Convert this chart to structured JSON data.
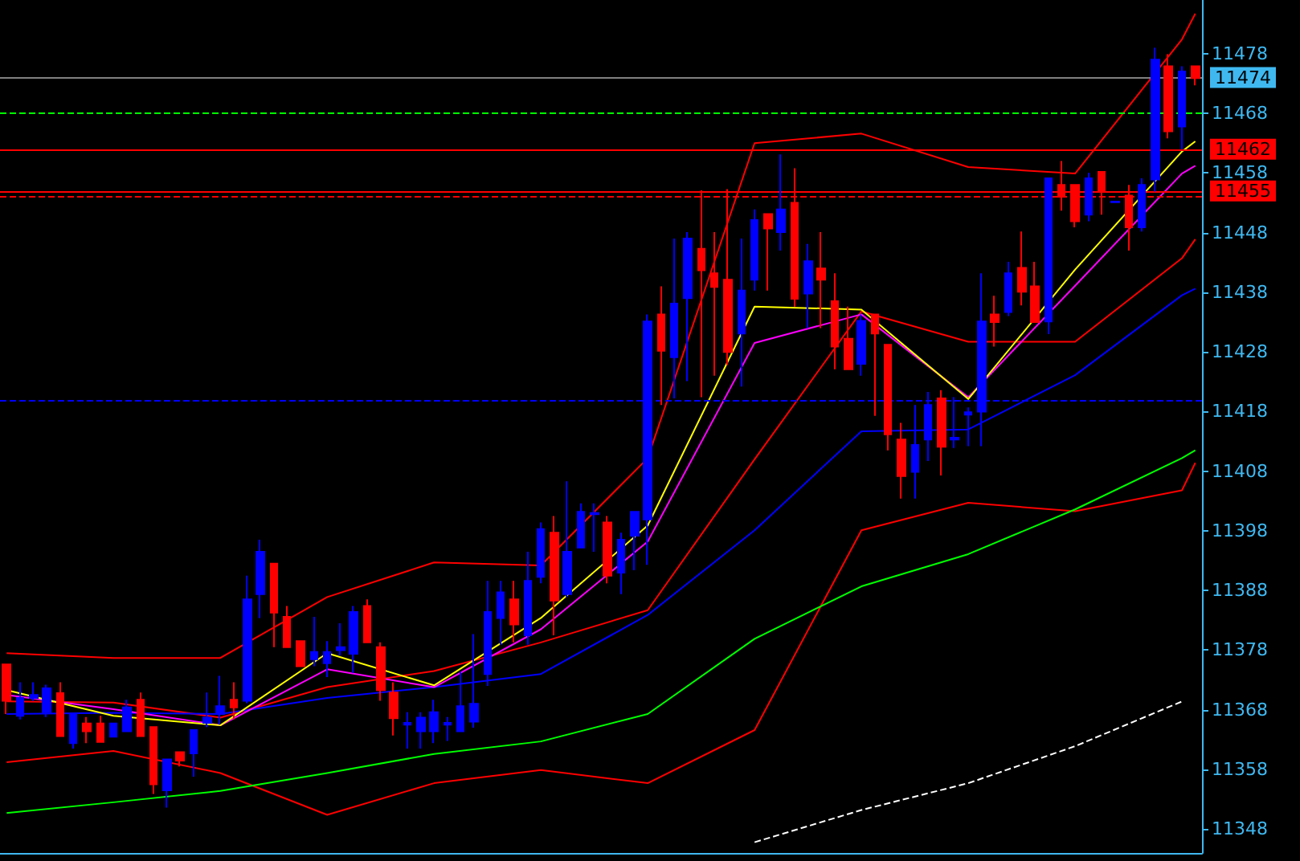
{
  "chart_data": {
    "type": "candlestick",
    "categories": [
      null,
      null,
      null,
      null,
      null,
      null,
      null,
      null,
      null,
      null,
      null,
      null,
      null,
      null,
      null,
      null,
      null,
      null,
      null,
      null,
      null,
      null,
      null,
      null,
      null,
      null,
      null,
      null,
      null,
      null,
      null,
      null,
      null,
      null,
      null,
      null,
      null,
      null,
      null,
      null,
      null,
      null,
      null,
      null,
      null,
      null,
      null,
      null,
      null,
      null,
      null,
      null,
      null,
      null,
      null,
      null,
      null,
      null,
      null,
      null,
      null,
      null,
      null,
      null,
      null,
      null,
      null,
      null,
      null,
      null,
      null,
      null,
      null,
      null,
      null,
      null,
      null,
      null,
      null,
      null,
      null,
      null,
      null,
      null,
      null,
      null,
      null,
      null,
      null,
      null
    ],
    "series": [
      {
        "type": "line",
        "color": "#ff0000",
        "values": [
          11377.5,
          null,
          null,
          null,
          null,
          null,
          null,
          null,
          11376.7,
          null,
          null,
          null,
          null,
          null,
          null,
          null,
          11376.7,
          null,
          null,
          null,
          null,
          null,
          null,
          null,
          11386.9,
          null,
          null,
          null,
          null,
          null,
          null,
          null,
          11392.7,
          null,
          null,
          null,
          null,
          null,
          null,
          null,
          11392.2,
          null,
          null,
          null,
          null,
          null,
          null,
          null,
          11410.2,
          null,
          null,
          null,
          null,
          null,
          null,
          null,
          11463.0,
          null,
          null,
          null,
          null,
          null,
          null,
          null,
          11464.6,
          null,
          null,
          null,
          null,
          null,
          null,
          null,
          11459.0,
          null,
          null,
          null,
          null,
          null,
          null,
          null,
          11457.9,
          null,
          null,
          null,
          null,
          null,
          null,
          null,
          11480.4,
          11484.7
        ]
      },
      {
        "type": "line",
        "color": "#ff0000",
        "values": [
          11369.4,
          null,
          null,
          null,
          null,
          null,
          null,
          null,
          11369.2,
          null,
          null,
          null,
          null,
          null,
          null,
          null,
          11366.7,
          null,
          null,
          null,
          null,
          null,
          null,
          null,
          11371.8,
          null,
          null,
          null,
          null,
          null,
          null,
          null,
          11374.5,
          null,
          null,
          null,
          null,
          null,
          null,
          null,
          11379.3,
          null,
          null,
          null,
          null,
          null,
          null,
          null,
          11384.7,
          null,
          null,
          null,
          null,
          null,
          null,
          null,
          11410,
          null,
          null,
          null,
          null,
          null,
          null,
          null,
          11434.8,
          null,
          null,
          null,
          null,
          null,
          null,
          null,
          11429.7,
          null,
          null,
          null,
          null,
          null,
          null,
          null,
          11429.7,
          null,
          null,
          null,
          null,
          null,
          null,
          null,
          11443.7,
          11446.9
        ]
      },
      {
        "type": "line",
        "color": "#ff0000",
        "values": [
          11359.2,
          null,
          null,
          null,
          null,
          null,
          null,
          null,
          11361.1,
          null,
          null,
          null,
          null,
          null,
          null,
          null,
          11357.4,
          null,
          null,
          null,
          null,
          null,
          null,
          null,
          11350.4,
          null,
          null,
          null,
          null,
          null,
          null,
          null,
          11355.7,
          null,
          null,
          null,
          null,
          null,
          null,
          null,
          11357.9,
          null,
          null,
          null,
          null,
          null,
          null,
          null,
          11355.7,
          null,
          null,
          null,
          null,
          null,
          null,
          null,
          11364.6,
          null,
          null,
          null,
          null,
          null,
          null,
          null,
          11398.1,
          null,
          null,
          null,
          null,
          null,
          null,
          null,
          11402.7,
          null,
          null,
          null,
          null,
          null,
          null,
          null,
          11401.3,
          null,
          null,
          null,
          null,
          null,
          null,
          null,
          11404.8,
          11409.4
        ]
      },
      {
        "type": "line",
        "color": "#00ff00",
        "values": [
          11350.7,
          null,
          null,
          null,
          null,
          null,
          null,
          null,
          11352.5,
          null,
          null,
          null,
          null,
          null,
          null,
          null,
          11354.4,
          null,
          null,
          null,
          null,
          null,
          null,
          null,
          11357.4,
          null,
          null,
          null,
          null,
          null,
          null,
          null,
          11360.6,
          null,
          null,
          null,
          null,
          null,
          null,
          null,
          11362.7,
          null,
          null,
          null,
          null,
          null,
          null,
          null,
          11367.3,
          null,
          null,
          null,
          null,
          null,
          null,
          null,
          11379.9,
          null,
          null,
          null,
          null,
          null,
          null,
          null,
          11388.7,
          null,
          null,
          null,
          null,
          null,
          null,
          null,
          11394.1,
          null,
          null,
          null,
          null,
          null,
          null,
          null,
          11401.6,
          null,
          null,
          null,
          null,
          null,
          null,
          null,
          11410.2,
          11411.5
        ]
      },
      {
        "type": "line",
        "color": "#0000ff",
        "values": [
          11367.3,
          null,
          null,
          null,
          null,
          null,
          null,
          null,
          11367.5,
          null,
          null,
          null,
          null,
          null,
          null,
          null,
          11367.3,
          null,
          null,
          null,
          null,
          null,
          null,
          null,
          11370.0,
          null,
          null,
          null,
          null,
          null,
          null,
          null,
          11371.8,
          null,
          null,
          null,
          null,
          null,
          null,
          null,
          11374.0,
          null,
          null,
          null,
          null,
          null,
          null,
          null,
          11383.9,
          null,
          null,
          null,
          null,
          null,
          null,
          null,
          11398.1,
          null,
          null,
          null,
          null,
          null,
          null,
          null,
          11414.7,
          null,
          null,
          null,
          null,
          null,
          null,
          null,
          11415.0,
          null,
          null,
          null,
          null,
          null,
          null,
          null,
          11424.1,
          null,
          null,
          null,
          null,
          null,
          null,
          null,
          11437.5,
          11438.6
        ]
      },
      {
        "type": "line",
        "color": "#ff00ff",
        "values": [
          11370.5,
          null,
          null,
          null,
          null,
          null,
          null,
          null,
          11368.1,
          null,
          null,
          null,
          null,
          null,
          null,
          null,
          11365.4,
          null,
          null,
          null,
          null,
          null,
          null,
          null,
          11374.8,
          null,
          null,
          null,
          null,
          null,
          null,
          null,
          11371.8,
          null,
          null,
          null,
          null,
          null,
          null,
          null,
          11381.5,
          null,
          null,
          null,
          null,
          null,
          null,
          null,
          11396.2,
          null,
          null,
          null,
          null,
          null,
          null,
          null,
          11429.5,
          null,
          null,
          null,
          null,
          null,
          null,
          null,
          11434.3,
          null,
          null,
          null,
          null,
          null,
          null,
          null,
          11420.4,
          null,
          null,
          null,
          null,
          null,
          null,
          null,
          11439.1,
          null,
          null,
          null,
          null,
          null,
          null,
          null,
          11457.9,
          11459.2
        ]
      },
      {
        "type": "line",
        "color": "#ffff00",
        "values": [
          11371.3,
          null,
          null,
          null,
          null,
          null,
          null,
          null,
          11367.0,
          null,
          null,
          null,
          null,
          null,
          null,
          null,
          11365.4,
          null,
          null,
          null,
          null,
          null,
          null,
          null,
          11377.5,
          null,
          null,
          null,
          null,
          null,
          null,
          null,
          11372.1,
          null,
          null,
          null,
          null,
          null,
          null,
          null,
          11383.4,
          null,
          null,
          null,
          null,
          null,
          null,
          null,
          11398.9,
          null,
          null,
          null,
          null,
          null,
          null,
          null,
          11435.6,
          null,
          null,
          null,
          null,
          null,
          null,
          null,
          11435.1,
          null,
          null,
          null,
          null,
          null,
          null,
          null,
          11420.1,
          null,
          null,
          null,
          null,
          null,
          null,
          null,
          11441.8,
          null,
          null,
          null,
          null,
          null,
          null,
          null,
          11461.6,
          11463.3
        ]
      },
      {
        "type": "line",
        "color": "#ffffff",
        "line_style": "dashed",
        "values": [
          null,
          null,
          null,
          null,
          null,
          null,
          null,
          null,
          null,
          null,
          null,
          null,
          null,
          null,
          null,
          null,
          null,
          null,
          null,
          null,
          null,
          null,
          null,
          null,
          null,
          null,
          null,
          null,
          null,
          null,
          null,
          null,
          null,
          null,
          null,
          null,
          null,
          null,
          null,
          null,
          null,
          null,
          null,
          null,
          null,
          null,
          null,
          null,
          null,
          null,
          null,
          null,
          null,
          null,
          null,
          null,
          11345.8,
          null,
          null,
          null,
          null,
          null,
          null,
          null,
          11351.2,
          null,
          null,
          null,
          null,
          null,
          null,
          null,
          11355.7,
          null,
          null,
          null,
          null,
          null,
          null,
          null,
          11361.9,
          null,
          null,
          null,
          null,
          null,
          null,
          null,
          11369.4,
          null
        ]
      },
      {
        "colors": [
          "#ff0000",
          "#0000ff",
          "#0000ff",
          "#0000ff",
          "#ff0000",
          "#0000ff",
          "#ff0000",
          "#ff0000",
          "#0000ff",
          "#0000ff",
          "#ff0000",
          "#ff0000",
          "#0000ff",
          "#ff0000",
          "#0000ff",
          "#0000ff",
          "#0000ff",
          "#ff0000",
          "#0000ff",
          "#0000ff",
          "#ff0000",
          "#ff0000",
          "#ff0000",
          "#0000ff",
          "#0000ff",
          "#0000ff",
          "#0000ff",
          "#ff0000",
          "#ff0000",
          "#ff0000",
          "#0000ff",
          "#0000ff",
          "#0000ff",
          "#0000ff",
          "#0000ff",
          "#0000ff",
          "#0000ff",
          "#0000ff",
          "#ff0000",
          "#0000ff",
          "#0000ff",
          "#ff0000",
          "#0000ff",
          "#0000ff",
          "#0000ff",
          "#ff0000",
          "#0000ff",
          "#0000ff",
          "#0000ff",
          "#ff0000",
          "#0000ff",
          "#0000ff",
          "#ff0000",
          "#ff0000",
          "#ff0000",
          "#0000ff",
          "#0000ff",
          "#ff0000",
          "#0000ff",
          "#ff0000",
          "#0000ff",
          "#ff0000",
          "#ff0000",
          "#ff0000",
          "#0000ff",
          "#ff0000",
          "#ff0000",
          "#ff0000",
          "#0000ff",
          "#0000ff",
          "#ff0000",
          "#0000ff",
          "#0000ff",
          "#0000ff",
          "#ff0000",
          "#0000ff",
          "#ff0000",
          "#ff0000",
          "#0000ff",
          "#ff0000",
          "#ff0000",
          "#0000ff",
          "#ff0000",
          "#0000ff",
          "#ff0000",
          "#0000ff",
          "#0000ff",
          "#ff0000",
          "#0000ff",
          "#ff0000"
        ],
        "ohlc": [
          [
            11375.6,
            11375.6,
            11367.3,
            11369.5
          ],
          [
            11367.0,
            11372.6,
            11366.4,
            11370.0
          ],
          [
            11370.0,
            11372.6,
            11369.5,
            11370.5
          ],
          [
            11367.6,
            11372.2,
            11366.8,
            11371.6
          ],
          [
            11370.8,
            11372.6,
            11363.6,
            11363.6
          ],
          [
            11362.4,
            11367.3,
            11361.5,
            11367.3
          ],
          [
            11365.7,
            11366.8,
            11362.4,
            11364.4
          ],
          [
            11365.7,
            11367.0,
            11362.6,
            11362.6
          ],
          [
            11363.5,
            11365.7,
            11363.5,
            11365.7
          ],
          [
            11364.4,
            11369.7,
            11364.4,
            11368.4
          ],
          [
            11369.7,
            11370.9,
            11363.6,
            11363.6
          ],
          [
            11365.1,
            11365.1,
            11353.9,
            11355.5
          ],
          [
            11354.5,
            11359.7,
            11351.6,
            11359.7
          ],
          [
            11360.9,
            11360.9,
            11358.5,
            11359.5
          ],
          [
            11360.7,
            11364.6,
            11356.8,
            11364.6
          ],
          [
            11365.8,
            11370.9,
            11365.1,
            11366.7
          ],
          [
            11367.3,
            11373.7,
            11365.5,
            11368.6
          ],
          [
            11369.7,
            11372.6,
            11366.4,
            11368.4
          ],
          [
            11369.5,
            11390.5,
            11369.1,
            11386.5
          ],
          [
            11387.4,
            11396.5,
            11383.4,
            11394.5
          ],
          [
            11392.5,
            11392.5,
            11378.5,
            11384.3
          ],
          [
            11383.6,
            11385.4,
            11378.5,
            11378.5
          ],
          [
            11379.5,
            11379.5,
            11375.3,
            11375.3
          ],
          [
            11376.5,
            11383.6,
            11375.3,
            11377.7
          ],
          [
            11375.8,
            11379.5,
            11373.5,
            11377.7
          ],
          [
            11378.0,
            11382.5,
            11377.1,
            11378.5
          ],
          [
            11377.4,
            11385.4,
            11374.2,
            11384.4
          ],
          [
            11385.4,
            11386.5,
            11379.3,
            11379.3
          ],
          [
            11378.5,
            11379.3,
            11369.5,
            11371.3
          ],
          [
            11370.9,
            11372.6,
            11363.7,
            11366.6
          ],
          [
            11365.5,
            11367.6,
            11361.5,
            11365.8
          ],
          [
            11364.4,
            11367.6,
            11361.5,
            11366.7
          ],
          [
            11364.4,
            11369.7,
            11362.4,
            11367.6
          ],
          [
            11365.5,
            11366.8,
            11362.8,
            11365.8
          ],
          [
            11364.4,
            11374.4,
            11364.4,
            11368.6
          ],
          [
            11366.0,
            11380.7,
            11365.0,
            11369.0
          ],
          [
            11374.0,
            11389.6,
            11372.0,
            11384.4
          ],
          [
            11383.4,
            11389.6,
            11378.9,
            11387.7
          ],
          [
            11386.5,
            11389.6,
            11379.3,
            11382.3
          ],
          [
            11380.5,
            11394.5,
            11378.9,
            11389.6
          ],
          [
            11390.3,
            11399.4,
            11389.2,
            11398.3
          ],
          [
            11397.7,
            11400.5,
            11380.5,
            11386.3
          ],
          [
            11387.4,
            11406.3,
            11386.9,
            11394.5
          ],
          [
            11395.2,
            11402.6,
            11395.2,
            11401.2
          ],
          [
            11400.8,
            11402.6,
            11394.5,
            11401.0
          ],
          [
            11399.4,
            11400.5,
            11389.2,
            11390.5
          ],
          [
            11391.0,
            11397.7,
            11387.4,
            11396.5
          ],
          [
            11397.2,
            11401.2,
            11391.4,
            11401.2
          ],
          [
            11399.9,
            11434.3,
            11392.3,
            11433.1
          ],
          [
            11434.3,
            11439.0,
            11419.1,
            11428.2
          ],
          [
            11427.1,
            11447.0,
            11420.2,
            11436.1
          ],
          [
            11437.0,
            11448.1,
            11423.1,
            11447.0
          ],
          [
            11445.3,
            11455.1,
            11420.4,
            11441.7
          ],
          [
            11441.2,
            11448.1,
            11424.0,
            11438.9
          ],
          [
            11440.1,
            11455.3,
            11425.8,
            11428.0
          ],
          [
            11431.1,
            11447.0,
            11422.2,
            11438.3
          ],
          [
            11440.1,
            11451.9,
            11438.3,
            11450.1
          ],
          [
            11451.1,
            11451.1,
            11438.3,
            11448.7
          ],
          [
            11448.1,
            11461.1,
            11445.0,
            11451.9
          ],
          [
            11453.0,
            11458.8,
            11435.6,
            11436.9
          ],
          [
            11437.8,
            11446.1,
            11432.0,
            11443.2
          ],
          [
            11442.0,
            11448.1,
            11432.0,
            11440.1
          ],
          [
            11436.5,
            11441.2,
            11425.1,
            11428.9
          ],
          [
            11430.2,
            11435.6,
            11425.1,
            11425.1
          ],
          [
            11426.0,
            11434.3,
            11424.0,
            11433.2
          ],
          [
            11434.3,
            11434.3,
            11417.3,
            11431.1
          ],
          [
            11429.2,
            11429.2,
            11411.5,
            11414.2
          ],
          [
            11413.3,
            11416.1,
            11403.4,
            11407.2
          ],
          [
            11407.9,
            11419.1,
            11403.4,
            11412.4
          ],
          [
            11413.3,
            11421.3,
            11409.7,
            11419.1
          ],
          [
            11420.2,
            11421.6,
            11407.3,
            11412.1
          ],
          [
            11413.3,
            11420.4,
            11411.9,
            11413.6
          ],
          [
            11417.5,
            11418.7,
            11412.2,
            11417.9
          ],
          [
            11418.0,
            11441.2,
            11412.2,
            11433.1
          ],
          [
            11434.3,
            11437.4,
            11428.9,
            11433.0
          ],
          [
            11434.7,
            11443.1,
            11434.0,
            11441.2
          ],
          [
            11442.1,
            11448.2,
            11435.8,
            11438.1
          ],
          [
            11439.0,
            11443.1,
            11433.0,
            11433.0
          ],
          [
            11433.1,
            11457.1,
            11431.0,
            11457.1
          ],
          [
            11456.0,
            11460.0,
            11451.7,
            11454.0
          ],
          [
            11456.0,
            11456.0,
            11448.9,
            11449.9
          ],
          [
            11451.0,
            11458.0,
            11449.9,
            11457.1
          ],
          [
            11458.2,
            11458.2,
            11451.0,
            11455.1
          ],
          [
            11453.1,
            11453.2,
            11453.1,
            11453.2
          ],
          [
            11454.2,
            11456.0,
            11445.0,
            11448.9
          ],
          [
            11448.9,
            11457.1,
            11448.2,
            11456.0
          ],
          [
            11456.9,
            11479.0,
            11454.9,
            11477.0
          ],
          [
            11475.9,
            11477.9,
            11463.8,
            11465.0
          ],
          [
            11465.8,
            11475.9,
            11462.0,
            11475.0
          ],
          [
            11475.9,
            11475.9,
            11472.7,
            11473.9
          ]
        ]
      }
    ],
    "ylim": [
      11344,
      11487
    ],
    "yticks": [
      11348,
      11358,
      11368,
      11378,
      11388,
      11398,
      11408,
      11418,
      11428,
      11438,
      11448,
      11458,
      11468,
      11478
    ],
    "tick_labels": "y",
    "grid": false,
    "ref_lines": [
      {
        "axis": "y",
        "value": 11474,
        "label": "11474",
        "color": "#808080",
        "line_style": "solid"
      },
      {
        "axis": "y",
        "value": 11468,
        "color": "#00ff00",
        "line_style": "dashed"
      },
      {
        "axis": "y",
        "value": 11462,
        "label": "11462",
        "color": "#ff0000",
        "line_style": "solid"
      },
      {
        "axis": "y",
        "value": 11455,
        "label": "11455",
        "color": "#ff0000",
        "line_style": "solid"
      },
      {
        "axis": "y",
        "value": 11454,
        "color": "#ff0000",
        "line_style": "dashed"
      },
      {
        "axis": "y",
        "value": 11420,
        "color": "#0000ff",
        "line_style": "dashed"
      }
    ]
  }
}
